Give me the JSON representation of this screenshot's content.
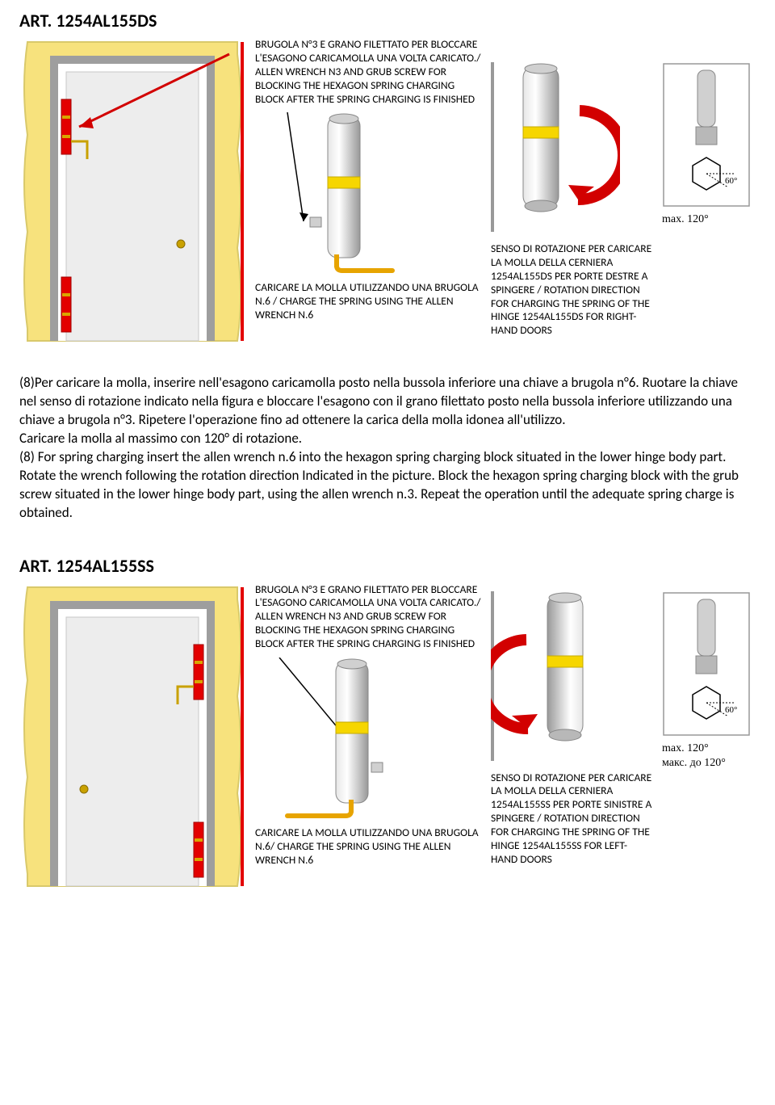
{
  "colors": {
    "wall": "#f7e27d",
    "wall_border": "#d9c96b",
    "frame": "#9e9e9e",
    "door": "#ededed",
    "hinge_red": "#e30000",
    "hinge_gold": "#d9a600",
    "arrow_red": "#d20000",
    "hinge_cyl": "#d0d0d0",
    "hinge_cyl_dark": "#989898",
    "hinge_band": "#f6d600",
    "wrench_gold": "#e7a400",
    "grey_line": "#9e9e9e",
    "text": "#000000",
    "divider": "#999999",
    "doorknob": "#c9a100",
    "hex_fill": "#ffffff",
    "hex_stroke": "#000000"
  },
  "section1": {
    "heading": "ART. 1254AL155DS",
    "top_label": "BRUGOLA N°3 E GRANO FILETTATO PER BLOCCARE L'ESAGONO CARICAMOLLA UNA VOLTA CARICATO./ ALLEN WRENCH N3 AND GRUB SCREW FOR BLOCKING THE HEXAGON SPRING CHARGING BLOCK AFTER THE SPRING CHARGING IS FINISHED",
    "bottom_label": "CARICARE LA MOLLA UTILIZZANDO UNA BRUGOLA N.6 / CHARGE THE SPRING USING THE ALLEN WRENCH N.6",
    "rotation_label": "SENSO DI ROTAZIONE PER CARICARE LA MOLLA DELLA CERNIERA 1254AL155DS PER PORTE DESTRE A SPINGERE / ROTATION DIRECTION FOR  CHARGING THE SPRING OF THE HINGE 1254AL155DS FOR RIGHT-HAND DOORS",
    "angle_label": "60°",
    "max_label": "max. 120°",
    "max_label2": "",
    "hinge_side": "left",
    "rotation_dir": "cw"
  },
  "body_paragraph": "(8)Per caricare la molla, inserire nell'esagono caricamolla posto nella bussola inferiore una chiave a brugola n°6.  Ruotare la chiave nel senso di rotazione indicato nella figura e bloccare l'esagono con il grano filettato posto nella bussola inferiore utilizzando una chiave a brugola n°3. Ripetere l'operazione fino ad ottenere la carica della molla idonea all'utilizzo.\nCaricare la molla al massimo con 120° di rotazione.\n(8) For spring charging insert the allen wrench n.6 into the hexagon spring charging block situated in the lower hinge body part. Rotate the wrench following the rotation direction Indicated in the picture. Block the hexagon spring charging block with the grub screw situated in the lower hinge body part, using the allen wrench n.3. Repeat the operation until the adequate spring charge is obtained.",
  "section2": {
    "heading": "ART. 1254AL155SS",
    "top_label": "BRUGOLA N°3 E GRANO FILETTATO PER BLOCCARE L'ESAGONO CARICAMOLLA UNA VOLTA CARICATO./ ALLEN WRENCH N3 AND GRUB SCREW FOR BLOCKING THE HEXAGON SPRING CHARGING BLOCK AFTER THE SPRING CHARGING IS FINISHED",
    "bottom_label": "CARICARE LA MOLLA UTILIZZANDO UNA BRUGOLA N.6/ CHARGE THE SPRING USING THE ALLEN WRENCH N.6",
    "rotation_label": "SENSO DI ROTAZIONE PER CARICARE LA MOLLA DELLA CERNIERA 1254AL155SS PER PORTE SINISTRE A SPINGERE / ROTATION DIRECTION FOR  CHARGING THE SPRING OF THE HINGE 1254AL155SS FOR LEFT-HAND DOORS",
    "angle_label": "60°",
    "max_label": "max. 120°",
    "max_label2": "макс. до 120°",
    "hinge_side": "right",
    "rotation_dir": "ccw"
  }
}
